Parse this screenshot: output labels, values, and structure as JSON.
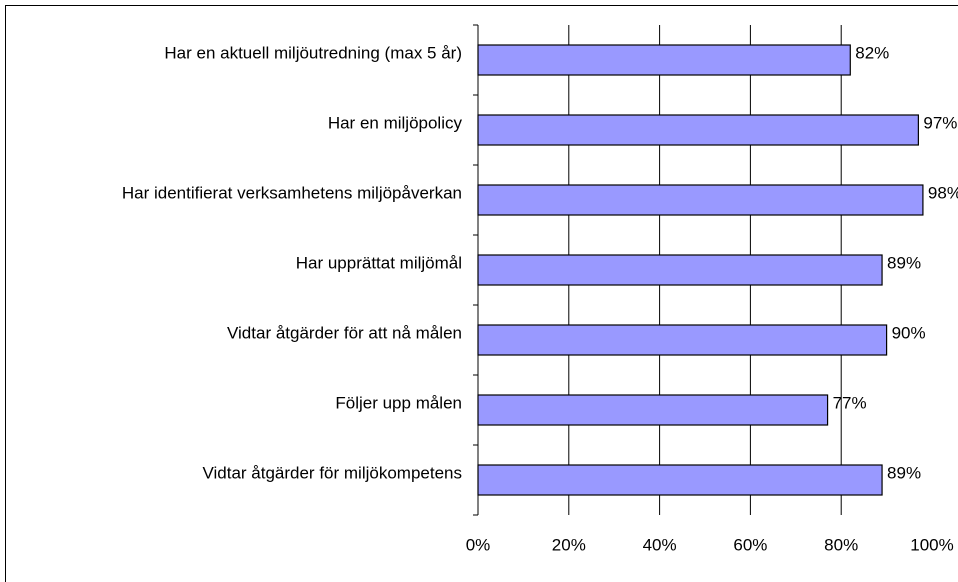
{
  "chart_data": {
    "type": "bar",
    "orientation": "horizontal",
    "categories": [
      "Har en aktuell miljöutredning (max 5 år)",
      "Har en miljöpolicy",
      "Har identifierat verksamhetens miljöpåverkan",
      "Har upprättat miljömål",
      "Vidtar åtgärder för att nå målen",
      "Följer upp målen",
      "Vidtar åtgärder för miljökompetens"
    ],
    "values": [
      82,
      97,
      98,
      89,
      90,
      77,
      89
    ],
    "value_labels": [
      "82%",
      "97%",
      "98%",
      "89%",
      "90%",
      "77%",
      "89%"
    ],
    "color": "#9999ff",
    "xlim": [
      0,
      100
    ],
    "xticks": [
      {
        "value": 0,
        "label": "0%"
      },
      {
        "value": 20,
        "label": "20%"
      },
      {
        "value": 40,
        "label": "40%"
      },
      {
        "value": 60,
        "label": "60%"
      },
      {
        "value": 80,
        "label": "80%"
      },
      {
        "value": 100,
        "label": "100%"
      }
    ],
    "grid": true
  }
}
